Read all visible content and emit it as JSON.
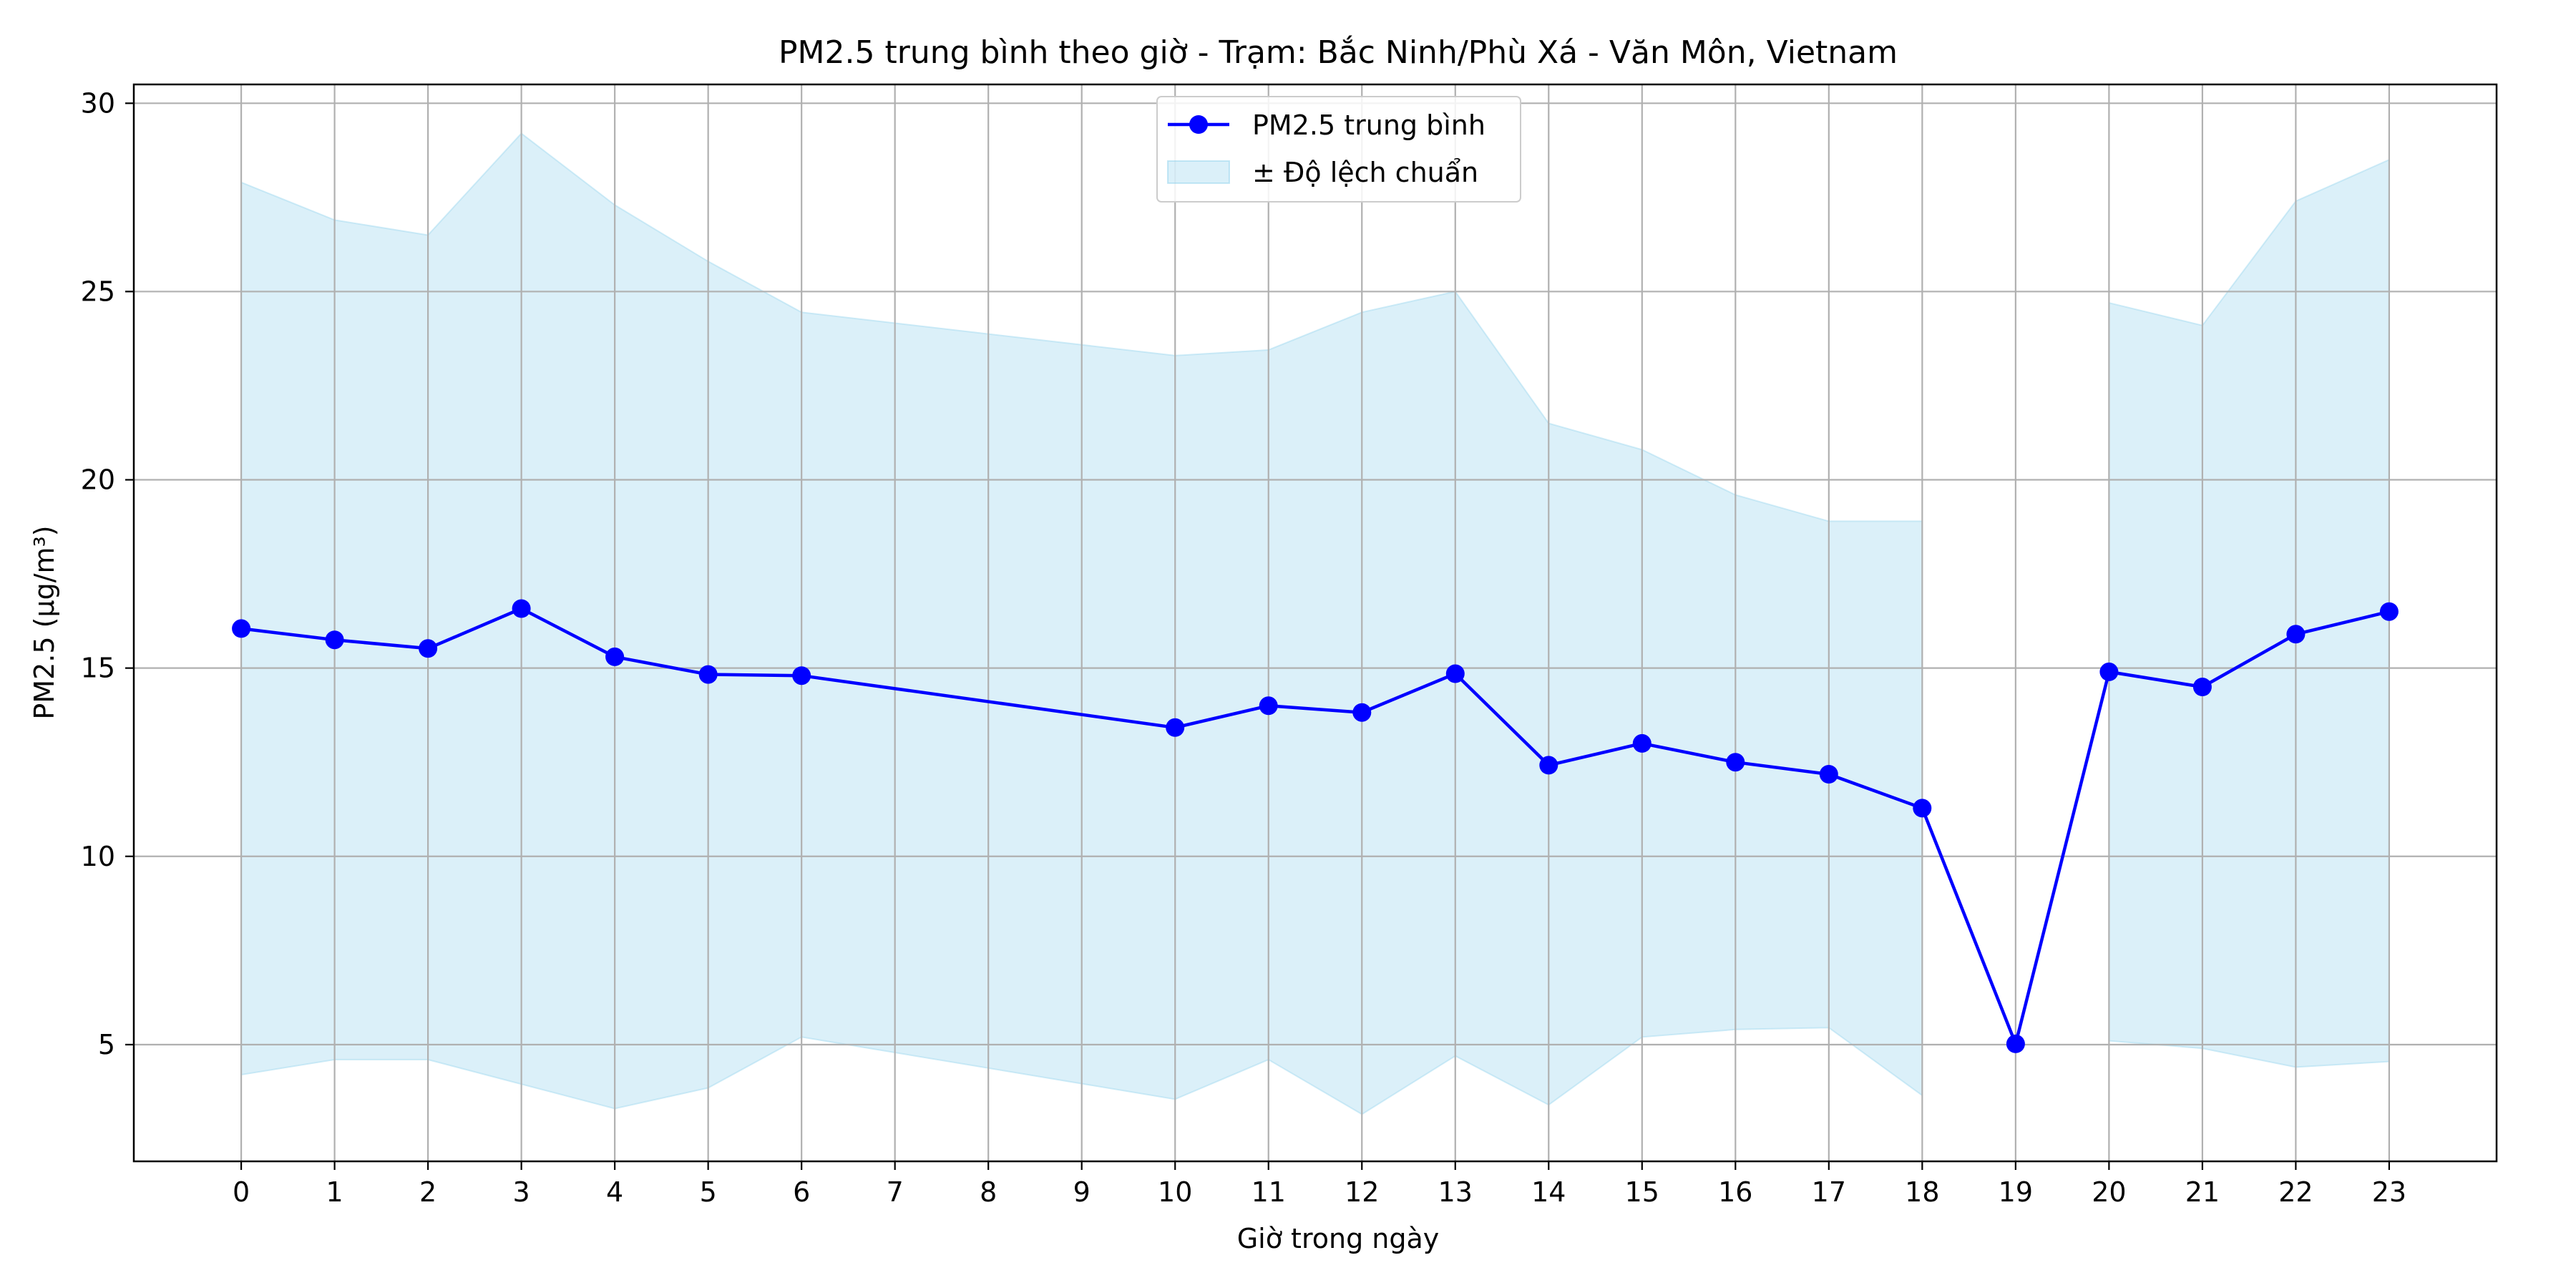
{
  "chart_data": {
    "type": "line",
    "title": "PM2.5 trung bình theo giờ - Trạm: Bắc Ninh/Phù Xá - Văn Môn, Vietnam",
    "xlabel": "Giờ trong ngày",
    "ylabel": "PM2.5 (µg/m³)",
    "xlim": [
      -1.15,
      24.15
    ],
    "ylim": [
      1.9,
      30.5
    ],
    "xticks": [
      0,
      1,
      2,
      3,
      4,
      5,
      6,
      7,
      8,
      9,
      10,
      11,
      12,
      13,
      14,
      15,
      16,
      17,
      18,
      19,
      20,
      21,
      22,
      23
    ],
    "yticks": [
      5,
      10,
      15,
      20,
      25,
      30
    ],
    "grid": true,
    "legend_position": "top-center",
    "series": [
      {
        "name": "PM2.5 trung bình",
        "color": "#0000ff",
        "marker": "circle",
        "points": [
          {
            "x": 0,
            "y": 16.05
          },
          {
            "x": 1,
            "y": 15.75
          },
          {
            "x": 2,
            "y": 15.52
          },
          {
            "x": 3,
            "y": 16.58
          },
          {
            "x": 4,
            "y": 15.3
          },
          {
            "x": 5,
            "y": 14.83
          },
          {
            "x": 6,
            "y": 14.8
          },
          {
            "x": 10,
            "y": 13.42
          },
          {
            "x": 11,
            "y": 14.0
          },
          {
            "x": 12,
            "y": 13.82
          },
          {
            "x": 13,
            "y": 14.85
          },
          {
            "x": 14,
            "y": 12.42
          },
          {
            "x": 15,
            "y": 13.0
          },
          {
            "x": 16,
            "y": 12.5
          },
          {
            "x": 17,
            "y": 12.18
          },
          {
            "x": 18,
            "y": 11.28
          },
          {
            "x": 19,
            "y": 5.02
          },
          {
            "x": 20,
            "y": 14.9
          },
          {
            "x": 21,
            "y": 14.5
          },
          {
            "x": 22,
            "y": 15.9
          },
          {
            "x": 23,
            "y": 16.5
          }
        ]
      }
    ],
    "band": {
      "name": "± Độ lệch chuẩn",
      "color": "#87ceeb",
      "opacity": 0.3,
      "segments": [
        [
          {
            "x": 0,
            "upper": 27.9,
            "lower": 4.2
          },
          {
            "x": 1,
            "upper": 26.9,
            "lower": 4.6
          },
          {
            "x": 2,
            "upper": 26.5,
            "lower": 4.6
          },
          {
            "x": 3,
            "upper": 29.2,
            "lower": 3.95
          },
          {
            "x": 4,
            "upper": 27.3,
            "lower": 3.3
          },
          {
            "x": 5,
            "upper": 25.8,
            "lower": 3.85
          },
          {
            "x": 6,
            "upper": 24.45,
            "lower": 5.2
          },
          {
            "x": 10,
            "upper": 23.3,
            "lower": 3.55
          },
          {
            "x": 11,
            "upper": 23.45,
            "lower": 4.6
          },
          {
            "x": 12,
            "upper": 24.45,
            "lower": 3.15
          },
          {
            "x": 13,
            "upper": 25.0,
            "lower": 4.7
          },
          {
            "x": 14,
            "upper": 21.5,
            "lower": 3.4
          },
          {
            "x": 15,
            "upper": 20.8,
            "lower": 5.2
          },
          {
            "x": 16,
            "upper": 19.6,
            "lower": 5.4
          },
          {
            "x": 17,
            "upper": 18.9,
            "lower": 5.45
          },
          {
            "x": 18,
            "upper": 18.9,
            "lower": 3.65
          }
        ],
        [
          {
            "x": 20,
            "upper": 24.7,
            "lower": 5.1
          },
          {
            "x": 21,
            "upper": 24.1,
            "lower": 4.9
          },
          {
            "x": 22,
            "upper": 27.4,
            "lower": 4.4
          },
          {
            "x": 23,
            "upper": 28.5,
            "lower": 4.55
          }
        ]
      ]
    }
  }
}
